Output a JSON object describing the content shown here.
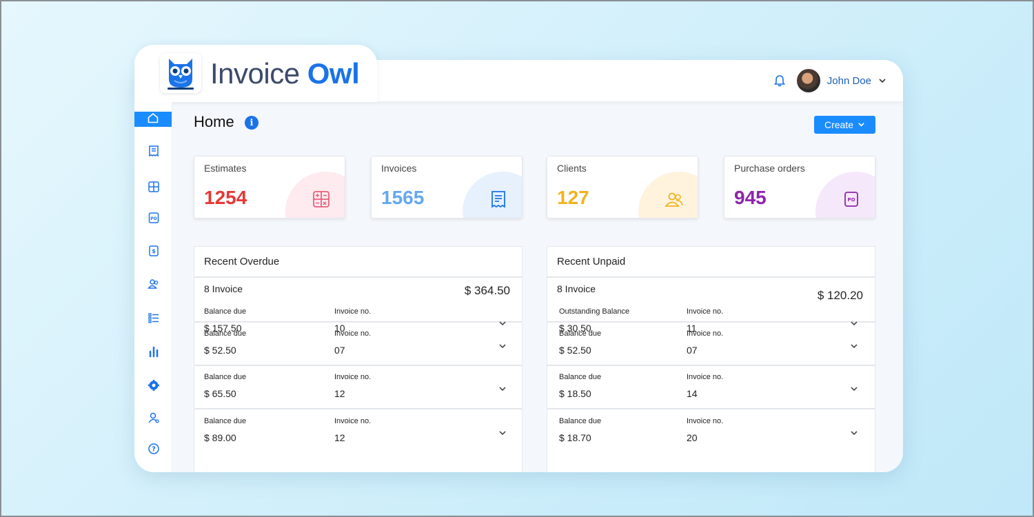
{
  "brand": {
    "name_part1": "Invoice ",
    "name_part2": "Owl"
  },
  "header": {
    "user_name": "John Doe"
  },
  "page": {
    "title": "Home",
    "info_glyph": "i",
    "create_label": "Create"
  },
  "sidebar": {
    "items": [
      {
        "name": "home-icon",
        "active": true
      },
      {
        "name": "estimates-icon"
      },
      {
        "name": "calculator-icon"
      },
      {
        "name": "purchase-order-icon"
      },
      {
        "name": "payments-icon"
      },
      {
        "name": "clients-icon"
      },
      {
        "name": "items-list-icon"
      },
      {
        "name": "reports-chart-icon"
      },
      {
        "name": "settings-gear-icon"
      },
      {
        "name": "user-profile-icon"
      },
      {
        "name": "help-icon"
      }
    ]
  },
  "stats": [
    {
      "label": "Estimates",
      "value": "1254",
      "color": "#e53935",
      "blob": "#fdebef",
      "icon": "calculator-icon"
    },
    {
      "label": "Invoices",
      "value": "1565",
      "color": "#64a8ef",
      "blob": "#e6f1fd",
      "icon": "receipt-icon"
    },
    {
      "label": "Clients",
      "value": "127",
      "color": "#f2b21f",
      "blob": "#fff3de",
      "icon": "clients-icon"
    },
    {
      "label": "Purchase orders",
      "value": "945",
      "color": "#8e24aa",
      "blob": "#f6e8fb",
      "icon": "purchase-order-icon"
    }
  ],
  "overdue": {
    "title": "Recent Overdue",
    "count": "8 Invoice",
    "total": "$ 364.50",
    "rows": [
      {
        "label1": "Balance due",
        "value1": "$ 157.50",
        "label2": "Invoice no.",
        "value2": "10"
      },
      {
        "label1": "Balance due",
        "value1": "$ 52.50",
        "label2": "Invoice no.",
        "value2": "07"
      },
      {
        "label1": "Balance due",
        "value1": "$ 65.50",
        "label2": "Invoice no.",
        "value2": "12"
      },
      {
        "label1": "Balance due",
        "value1": "$ 89.00",
        "label2": "Invoice no.",
        "value2": "12"
      }
    ]
  },
  "unpaid": {
    "title": "Recent Unpaid",
    "count": "8 Invoice",
    "total": "$ 120.20",
    "rows": [
      {
        "label1": "Outstanding Balance",
        "value1": "$ 30.50",
        "label2": "Invoice no.",
        "value2": "11"
      },
      {
        "label1": "Balance due",
        "value1": "$ 52.50",
        "label2": "Invoice no.",
        "value2": "07"
      },
      {
        "label1": "Balance due",
        "value1": "$ 18.50",
        "label2": "Invoice no.",
        "value2": "14"
      },
      {
        "label1": "Balance due",
        "value1": "$ 18.70",
        "label2": "Invoice no.",
        "value2": "20"
      }
    ]
  },
  "colors": {
    "accent": "#1a8cff",
    "brand_dark": "#3b4a6b",
    "brand_blue": "#1a73e8"
  }
}
